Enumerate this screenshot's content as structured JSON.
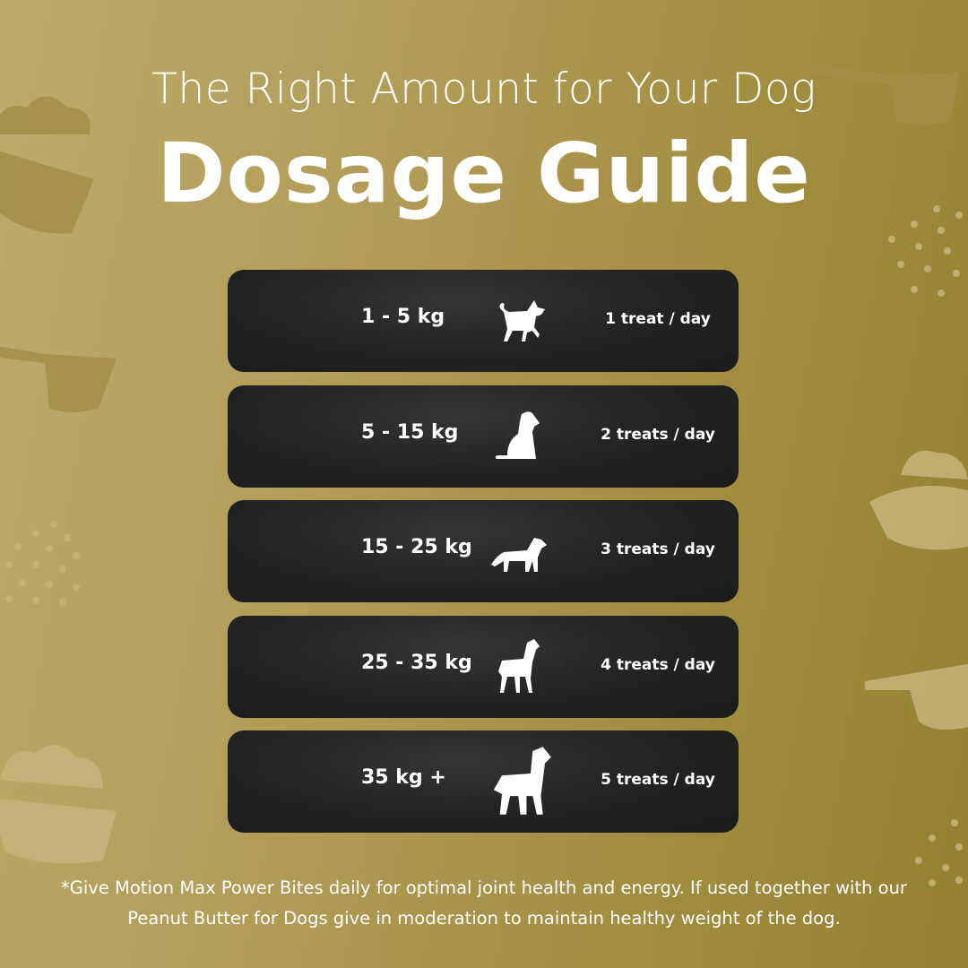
{
  "header": {
    "subtitle": "The Right Amount for Your Dog",
    "title": "Dosage Guide"
  },
  "colors": {
    "background": "#a8924a",
    "card": "#222222",
    "text": "#ffffff"
  },
  "rows": [
    {
      "icon": "small-dog-walking-icon",
      "weight": "1 - 5 kg",
      "dose": "1 treat / day"
    },
    {
      "icon": "sitting-dog-icon",
      "weight": "5 - 15 kg",
      "dose": "2 treats / day"
    },
    {
      "icon": "medium-dog-standing-icon",
      "weight": "15 - 25 kg",
      "dose": "3 treats / day"
    },
    {
      "icon": "large-dog-standing-icon",
      "weight": "25 - 35 kg",
      "dose": "4 treats / day"
    },
    {
      "icon": "giant-dog-standing-icon",
      "weight": "35 kg +",
      "dose": "5 treats / day"
    }
  ],
  "footer": {
    "note": "*Give Motion Max Power Bites daily for optimal joint health and energy. If used together with our Peanut Butter for Dogs give in moderation to maintain healthy weight of the dog."
  }
}
